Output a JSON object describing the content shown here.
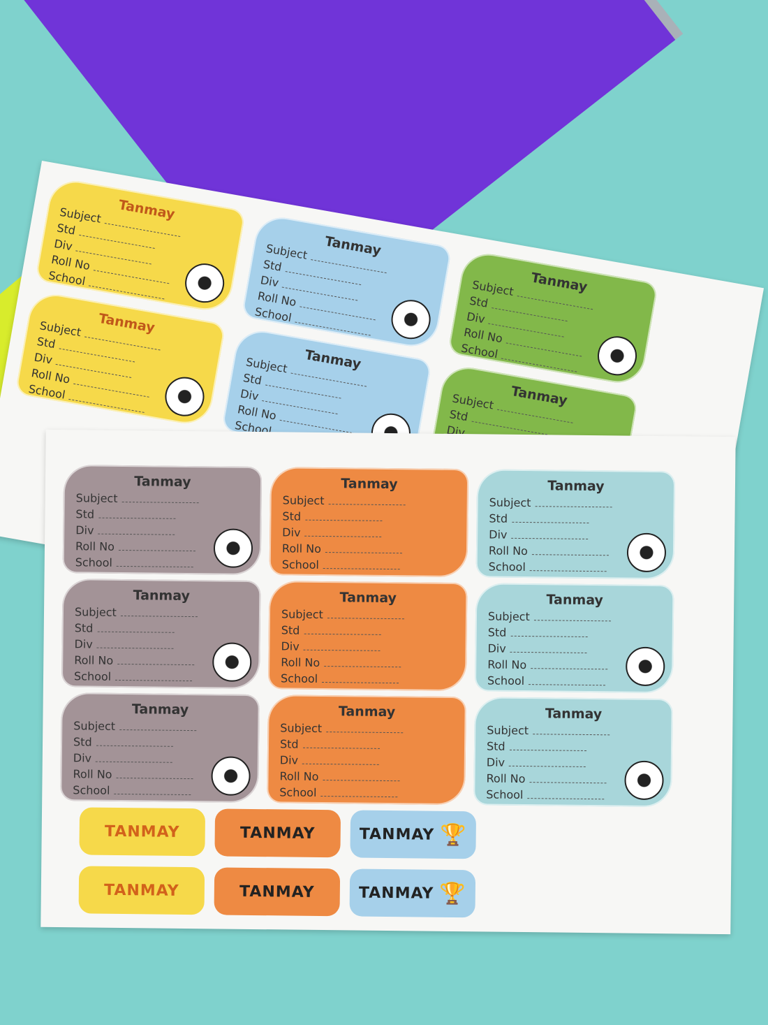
{
  "name": "Tanmay",
  "tag_name": "TANMAY",
  "fields": [
    "Subject",
    "Std",
    "Div",
    "Roll No",
    "School"
  ],
  "colors": {
    "background": "#7fd2cd",
    "grey": "#a39397",
    "orange": "#ee8a43",
    "teal": "#a8d6da",
    "yellow": "#f6d94a",
    "blue": "#a6d0ea",
    "green": "#82b84a"
  },
  "icons": [
    "soccer-ball-icon",
    "goalkeeper-gloves-icon",
    "trophy-icon",
    "football-boots-icon",
    "player-icon"
  ]
}
